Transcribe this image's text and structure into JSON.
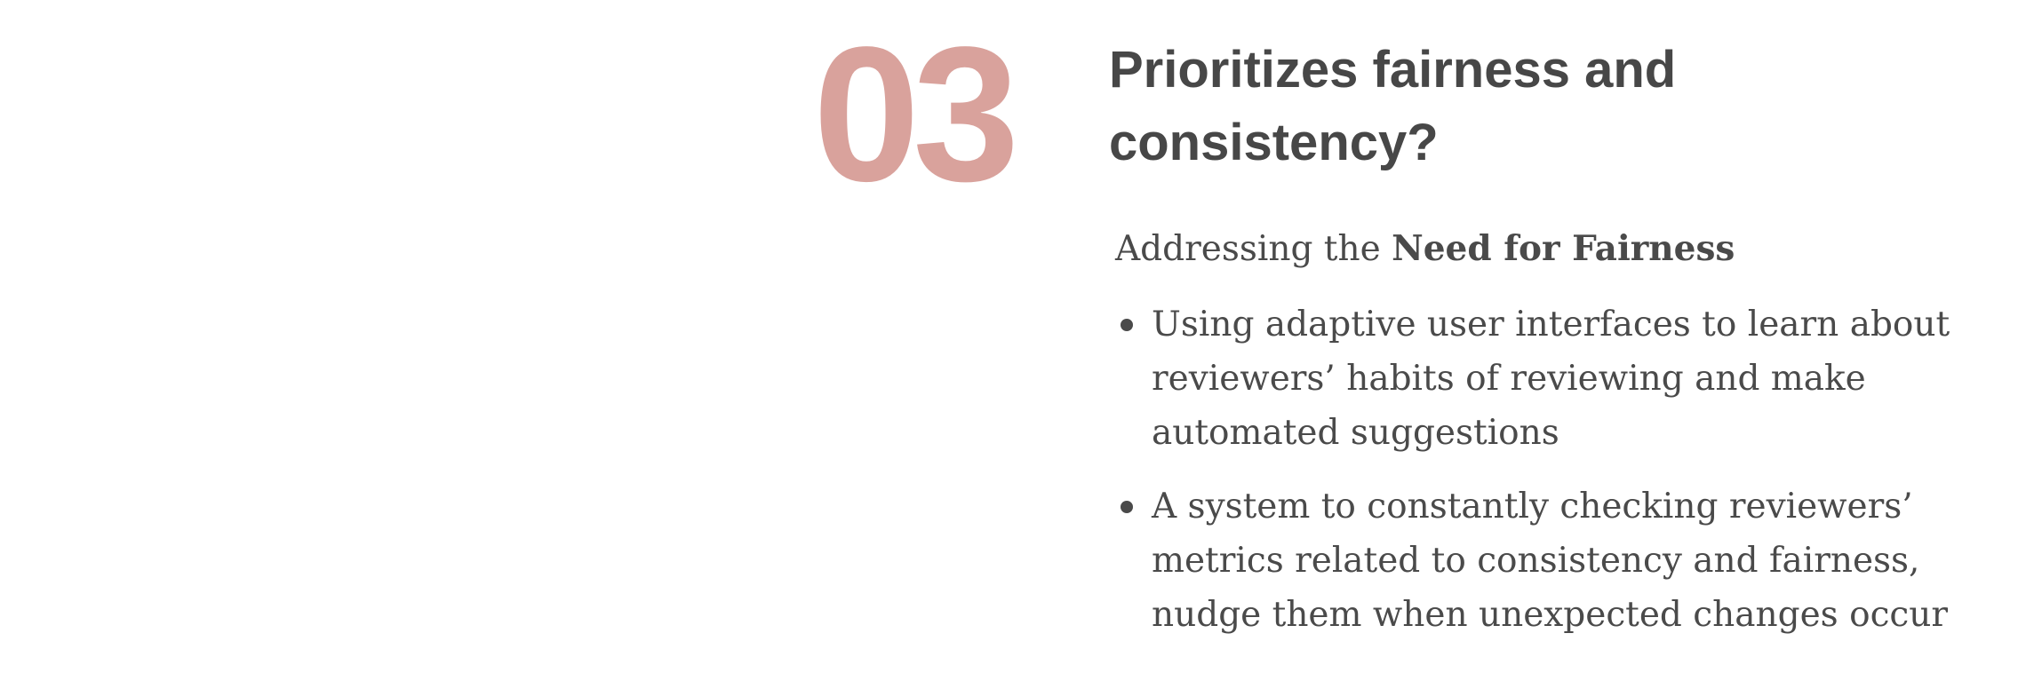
{
  "colors": {
    "number": "#d9a29c",
    "heading": "#474747",
    "body": "#4a4a4a"
  },
  "section": {
    "number": "03",
    "title": "Prioritizes fairness and consistency?"
  },
  "content": {
    "lead_prefix": "Addressing the ",
    "lead_bold": "Need for Fairness",
    "bullets": [
      "Using adaptive user interfaces to learn about reviewers’ habits of reviewing and make automated suggestions",
      "A system to constantly checking reviewers’ metrics related to consistency and fairness, nudge them when unexpected changes occur"
    ]
  }
}
